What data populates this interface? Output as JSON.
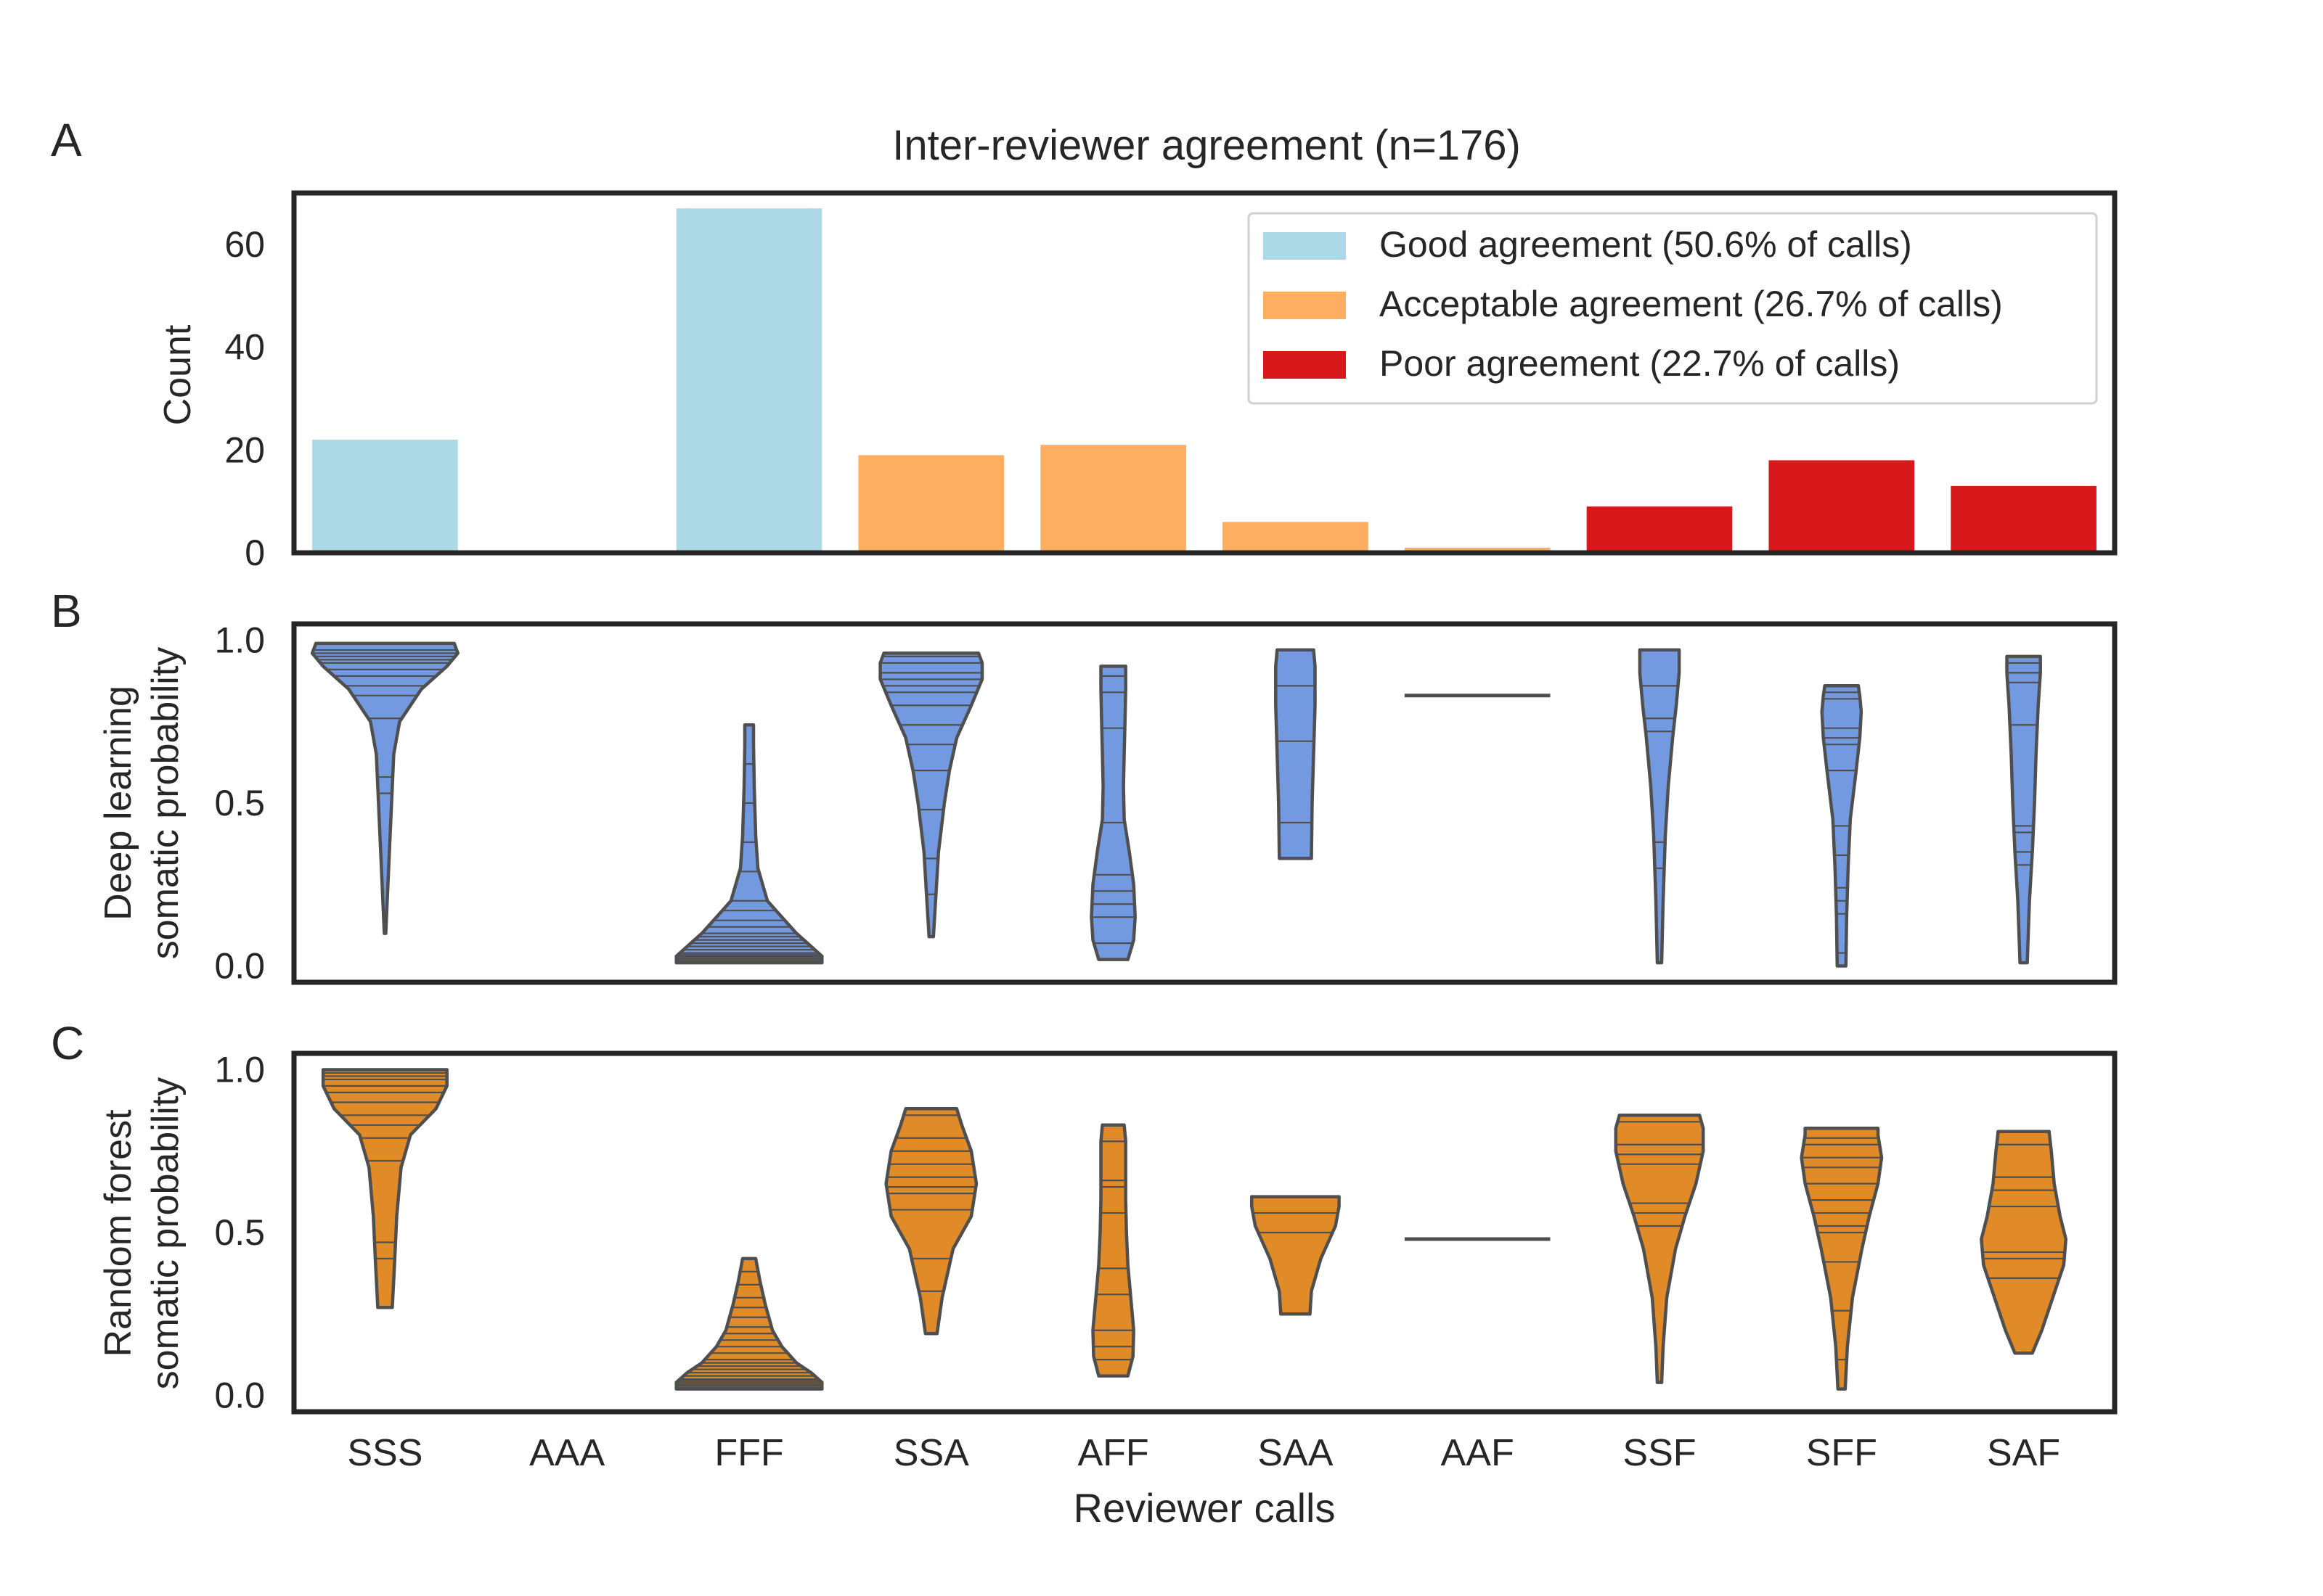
{
  "chart_data": [
    {
      "panel": "A",
      "type": "bar",
      "title": "Inter-reviewer agreement (n=176)",
      "ylabel": "Count",
      "xlabel": "",
      "ylim": [
        0,
        70
      ],
      "yticks": [
        0,
        20,
        40,
        60
      ],
      "categories": [
        "SSS",
        "AAA",
        "FFF",
        "SSA",
        "AFF",
        "SAA",
        "AAF",
        "SSF",
        "SFF",
        "SAF"
      ],
      "values": [
        22,
        0,
        67,
        19,
        21,
        6,
        1,
        9,
        18,
        13
      ],
      "groups": [
        "good",
        "good",
        "good",
        "acceptable",
        "acceptable",
        "acceptable",
        "acceptable",
        "poor",
        "poor",
        "poor"
      ],
      "legend": [
        {
          "key": "good",
          "label": "Good agreement (50.6% of calls)",
          "color": "#add8e6"
        },
        {
          "key": "acceptable",
          "label": "Acceptable agreement (26.7% of calls)",
          "color": "#fdae61"
        },
        {
          "key": "poor",
          "label": "Poor agreement (22.7% of calls)",
          "color": "#d7191c"
        }
      ],
      "legend_position": "top-right",
      "grid": false
    },
    {
      "panel": "B",
      "type": "violin",
      "ylabel": [
        "Deep learning",
        "somatic probability"
      ],
      "ylim": [
        -0.05,
        1.05
      ],
      "yticks": [
        "0.0",
        "0.5",
        "1.0"
      ],
      "color": "#7399e0",
      "inner": "stick",
      "categories": [
        "SSS",
        "AAA",
        "FFF",
        "SSA",
        "AFF",
        "SAA",
        "AAF",
        "SSF",
        "SFF",
        "SAF"
      ],
      "series": [
        {
          "category": "SSS",
          "range": [
            0.1,
            0.99
          ],
          "profile": [
            [
              0.1,
              0.01
            ],
            [
              0.3,
              0.05
            ],
            [
              0.45,
              0.08
            ],
            [
              0.55,
              0.1
            ],
            [
              0.65,
              0.12
            ],
            [
              0.75,
              0.2
            ],
            [
              0.85,
              0.5
            ],
            [
              0.92,
              0.85
            ],
            [
              0.96,
              1.0
            ],
            [
              0.99,
              0.95
            ]
          ],
          "sticks": [
            0.97,
            0.96,
            0.95,
            0.94,
            0.93,
            0.91,
            0.89,
            0.86,
            0.83,
            0.76,
            0.58,
            0.53
          ]
        },
        {
          "category": "AAA",
          "range": null,
          "profile": [],
          "sticks": []
        },
        {
          "category": "FFF",
          "range": [
            0.01,
            0.74
          ],
          "profile": [
            [
              0.01,
              1.0
            ],
            [
              0.03,
              1.0
            ],
            [
              0.06,
              0.85
            ],
            [
              0.1,
              0.65
            ],
            [
              0.15,
              0.45
            ],
            [
              0.2,
              0.25
            ],
            [
              0.3,
              0.12
            ],
            [
              0.4,
              0.09
            ],
            [
              0.55,
              0.07
            ],
            [
              0.68,
              0.06
            ],
            [
              0.74,
              0.06
            ]
          ],
          "sticks": [
            0.01,
            0.015,
            0.02,
            0.025,
            0.03,
            0.035,
            0.04,
            0.05,
            0.06,
            0.07,
            0.08,
            0.09,
            0.1,
            0.12,
            0.14,
            0.17,
            0.2,
            0.29,
            0.38,
            0.5,
            0.62
          ]
        },
        {
          "category": "SSA",
          "range": [
            0.09,
            0.96
          ],
          "profile": [
            [
              0.09,
              0.03
            ],
            [
              0.2,
              0.06
            ],
            [
              0.35,
              0.1
            ],
            [
              0.5,
              0.18
            ],
            [
              0.6,
              0.25
            ],
            [
              0.7,
              0.35
            ],
            [
              0.8,
              0.55
            ],
            [
              0.88,
              0.7
            ],
            [
              0.93,
              0.7
            ],
            [
              0.96,
              0.65
            ]
          ],
          "sticks": [
            0.95,
            0.93,
            0.9,
            0.88,
            0.86,
            0.84,
            0.8,
            0.74,
            0.68,
            0.6,
            0.48,
            0.33,
            0.22
          ]
        },
        {
          "category": "AFF",
          "range": [
            0.02,
            0.92
          ],
          "profile": [
            [
              0.02,
              0.2
            ],
            [
              0.08,
              0.28
            ],
            [
              0.15,
              0.3
            ],
            [
              0.25,
              0.28
            ],
            [
              0.35,
              0.22
            ],
            [
              0.45,
              0.15
            ],
            [
              0.55,
              0.14
            ],
            [
              0.65,
              0.15
            ],
            [
              0.75,
              0.16
            ],
            [
              0.85,
              0.17
            ],
            [
              0.92,
              0.17
            ]
          ],
          "sticks": [
            0.89,
            0.84,
            0.73,
            0.44,
            0.28,
            0.23,
            0.19,
            0.15,
            0.07
          ]
        },
        {
          "category": "SAA",
          "range": [
            0.33,
            0.97
          ],
          "profile": [
            [
              0.33,
              0.22
            ],
            [
              0.5,
              0.23
            ],
            [
              0.65,
              0.25
            ],
            [
              0.8,
              0.27
            ],
            [
              0.92,
              0.27
            ],
            [
              0.97,
              0.25
            ]
          ],
          "sticks": [
            0.44,
            0.69,
            0.86
          ]
        },
        {
          "category": "AAF",
          "range": [
            0.83,
            0.83
          ],
          "profile": [],
          "sticks": [
            0.83
          ]
        },
        {
          "category": "SSF",
          "range": [
            0.01,
            0.97
          ],
          "profile": [
            [
              0.01,
              0.03
            ],
            [
              0.2,
              0.05
            ],
            [
              0.4,
              0.08
            ],
            [
              0.55,
              0.12
            ],
            [
              0.7,
              0.18
            ],
            [
              0.8,
              0.23
            ],
            [
              0.9,
              0.27
            ],
            [
              0.97,
              0.27
            ]
          ],
          "sticks": [
            0.86,
            0.76,
            0.72,
            0.38,
            0.3
          ]
        },
        {
          "category": "SFF",
          "range": [
            0.0,
            0.86
          ],
          "profile": [
            [
              0.0,
              0.06
            ],
            [
              0.15,
              0.07
            ],
            [
              0.3,
              0.09
            ],
            [
              0.45,
              0.12
            ],
            [
              0.6,
              0.2
            ],
            [
              0.7,
              0.25
            ],
            [
              0.78,
              0.27
            ],
            [
              0.83,
              0.25
            ],
            [
              0.86,
              0.23
            ]
          ],
          "sticks": [
            0.84,
            0.82,
            0.73,
            0.7,
            0.68,
            0.6,
            0.43,
            0.34,
            0.24,
            0.2,
            0.16,
            0.04
          ]
        },
        {
          "category": "SAF",
          "range": [
            0.01,
            0.95
          ],
          "profile": [
            [
              0.01,
              0.05
            ],
            [
              0.2,
              0.08
            ],
            [
              0.35,
              0.12
            ],
            [
              0.5,
              0.15
            ],
            [
              0.65,
              0.17
            ],
            [
              0.8,
              0.2
            ],
            [
              0.9,
              0.23
            ],
            [
              0.95,
              0.23
            ]
          ],
          "sticks": [
            0.93,
            0.9,
            0.87,
            0.74,
            0.43,
            0.41,
            0.35,
            0.31
          ]
        }
      ]
    },
    {
      "panel": "C",
      "type": "violin",
      "ylabel": [
        "Random forest",
        "somatic probability"
      ],
      "xlabel": "Reviewer calls",
      "ylim": [
        -0.05,
        1.05
      ],
      "yticks": [
        "0.0",
        "0.5",
        "1.0"
      ],
      "color": "#e08b27",
      "inner": "stick",
      "categories": [
        "SSS",
        "AAA",
        "FFF",
        "SSA",
        "AFF",
        "SAA",
        "AAF",
        "SSF",
        "SFF",
        "SAF"
      ],
      "series": [
        {
          "category": "SSS",
          "range": [
            0.27,
            1.0
          ],
          "profile": [
            [
              0.27,
              0.1
            ],
            [
              0.4,
              0.13
            ],
            [
              0.55,
              0.16
            ],
            [
              0.7,
              0.22
            ],
            [
              0.8,
              0.35
            ],
            [
              0.88,
              0.7
            ],
            [
              0.95,
              0.85
            ],
            [
              1.0,
              0.85
            ]
          ],
          "sticks": [
            0.99,
            0.98,
            0.97,
            0.95,
            0.93,
            0.9,
            0.86,
            0.83,
            0.79,
            0.72,
            0.47,
            0.42
          ]
        },
        {
          "category": "AAA",
          "range": null,
          "profile": [],
          "sticks": []
        },
        {
          "category": "FFF",
          "range": [
            0.02,
            0.42
          ],
          "profile": [
            [
              0.02,
              1.0
            ],
            [
              0.04,
              1.0
            ],
            [
              0.07,
              0.85
            ],
            [
              0.1,
              0.65
            ],
            [
              0.15,
              0.45
            ],
            [
              0.2,
              0.32
            ],
            [
              0.28,
              0.22
            ],
            [
              0.35,
              0.15
            ],
            [
              0.42,
              0.09
            ]
          ],
          "sticks": [
            0.02,
            0.025,
            0.03,
            0.035,
            0.04,
            0.045,
            0.05,
            0.06,
            0.07,
            0.08,
            0.09,
            0.1,
            0.11,
            0.13,
            0.15,
            0.17,
            0.19,
            0.21,
            0.24,
            0.27,
            0.3,
            0.34,
            0.38
          ]
        },
        {
          "category": "SSA",
          "range": [
            0.19,
            0.88
          ],
          "profile": [
            [
              0.19,
              0.08
            ],
            [
              0.3,
              0.15
            ],
            [
              0.45,
              0.3
            ],
            [
              0.55,
              0.55
            ],
            [
              0.65,
              0.62
            ],
            [
              0.75,
              0.55
            ],
            [
              0.83,
              0.42
            ],
            [
              0.88,
              0.35
            ]
          ],
          "sticks": [
            0.86,
            0.79,
            0.75,
            0.71,
            0.67,
            0.64,
            0.62,
            0.57,
            0.42,
            0.32
          ]
        },
        {
          "category": "AFF",
          "range": [
            0.06,
            0.83
          ],
          "profile": [
            [
              0.06,
              0.2
            ],
            [
              0.12,
              0.27
            ],
            [
              0.2,
              0.28
            ],
            [
              0.3,
              0.24
            ],
            [
              0.4,
              0.2
            ],
            [
              0.5,
              0.18
            ],
            [
              0.6,
              0.17
            ],
            [
              0.7,
              0.17
            ],
            [
              0.78,
              0.17
            ],
            [
              0.83,
              0.15
            ]
          ],
          "sticks": [
            0.78,
            0.66,
            0.64,
            0.56,
            0.39,
            0.31,
            0.2,
            0.15,
            0.11
          ]
        },
        {
          "category": "SAA",
          "range": [
            0.25,
            0.61
          ],
          "profile": [
            [
              0.25,
              0.2
            ],
            [
              0.32,
              0.22
            ],
            [
              0.42,
              0.35
            ],
            [
              0.52,
              0.55
            ],
            [
              0.58,
              0.6
            ],
            [
              0.61,
              0.6
            ]
          ],
          "sticks": [
            0.56,
            0.5
          ]
        },
        {
          "category": "AAF",
          "range": [
            0.48,
            0.48
          ],
          "profile": [],
          "sticks": [
            0.48
          ]
        },
        {
          "category": "SSF",
          "range": [
            0.04,
            0.86
          ],
          "profile": [
            [
              0.04,
              0.03
            ],
            [
              0.15,
              0.05
            ],
            [
              0.3,
              0.1
            ],
            [
              0.45,
              0.22
            ],
            [
              0.55,
              0.35
            ],
            [
              0.65,
              0.5
            ],
            [
              0.75,
              0.6
            ],
            [
              0.82,
              0.6
            ],
            [
              0.86,
              0.55
            ]
          ],
          "sticks": [
            0.84,
            0.77,
            0.74,
            0.71,
            0.59,
            0.56,
            0.52
          ]
        },
        {
          "category": "SFF",
          "range": [
            0.02,
            0.82
          ],
          "profile": [
            [
              0.02,
              0.05
            ],
            [
              0.15,
              0.08
            ],
            [
              0.3,
              0.15
            ],
            [
              0.45,
              0.28
            ],
            [
              0.55,
              0.38
            ],
            [
              0.65,
              0.5
            ],
            [
              0.73,
              0.55
            ],
            [
              0.8,
              0.5
            ],
            [
              0.82,
              0.5
            ]
          ],
          "sticks": [
            0.79,
            0.77,
            0.73,
            0.7,
            0.65,
            0.6,
            0.56,
            0.52,
            0.5,
            0.41,
            0.26,
            0.11
          ]
        },
        {
          "category": "SAF",
          "range": [
            0.13,
            0.81
          ],
          "profile": [
            [
              0.13,
              0.12
            ],
            [
              0.2,
              0.25
            ],
            [
              0.3,
              0.4
            ],
            [
              0.4,
              0.55
            ],
            [
              0.48,
              0.58
            ],
            [
              0.55,
              0.5
            ],
            [
              0.65,
              0.42
            ],
            [
              0.75,
              0.38
            ],
            [
              0.81,
              0.35
            ]
          ],
          "sticks": [
            0.77,
            0.67,
            0.63,
            0.58,
            0.44,
            0.42,
            0.36
          ]
        }
      ]
    }
  ],
  "panel_labels": [
    "A",
    "B",
    "C"
  ]
}
